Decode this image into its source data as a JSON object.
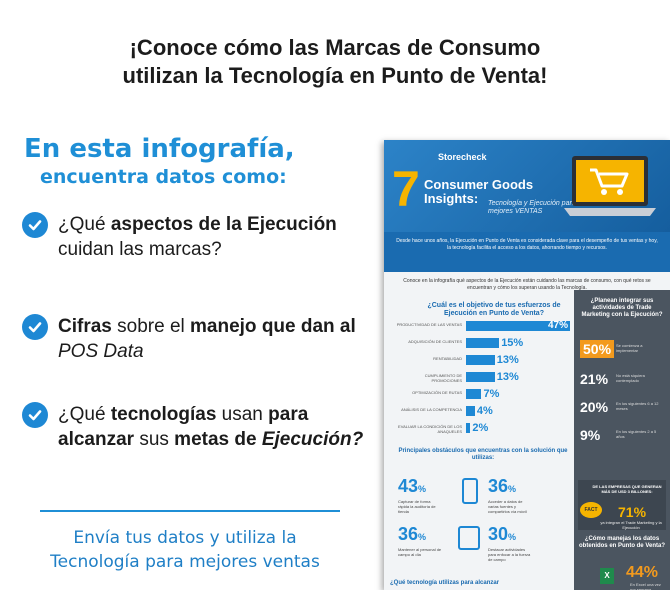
{
  "headline": {
    "line1": "¡Conoce cómo las Marcas de Consumo",
    "line2": "utilizan la Tecnología en Punto de Venta!"
  },
  "intro": {
    "title": "En esta infografía,",
    "subtitle": "encuentra datos como:"
  },
  "bullets": [
    {
      "pre": "¿Qué ",
      "bold": "aspectos de la Ejecución",
      "post": " cuidan las marcas?"
    },
    {
      "bold1": "Cifras",
      "mid1": " sobre el ",
      "bold2": "manejo que dan al ",
      "bolditalic": "POS Data"
    },
    {
      "pre": "¿Qué ",
      "bold1": "tecnologías",
      "mid1": " usan ",
      "bold2": "para alcanzar",
      "mid2": " sus ",
      "bold3": "metas de ",
      "bolditalic": "Ejecución?"
    }
  ],
  "cta": {
    "line1": "Envía tus datos y utiliza la",
    "line2": "Tecnología para mejores ventas"
  },
  "infographic": {
    "brand": "Storecheck",
    "number": "7",
    "title_line1": "Consumer Goods",
    "title_line2": "Insights:",
    "subtitle": "Tecnología y Ejecución para mejores VENTAS",
    "intro": "Desde hace unos años, la Ejecución en Punto de Venta es considerada clave para el desempeño de tus ventas y hoy, la tecnología facilita el acceso a los datos, ahorrando tiempo y recursos.",
    "lead": "Conoce en la infografía qué aspectos de la Ejecución están cuidando las marcas de consumo, con qué retos se encuentran y cómo los superan usando la Tecnología.",
    "q1": "¿Cuál es el objetivo de tus esfuerzos de Ejecución en Punto de Venta?",
    "bars": [
      {
        "label": "PRODUCTIVIDAD DE LAS VENTAS",
        "value": 47,
        "text": "47%"
      },
      {
        "label": "ADQUISICIÓN DE CLIENTES",
        "value": 15,
        "text": "15%"
      },
      {
        "label": "RENTABILIDAD",
        "value": 13,
        "text": "13%"
      },
      {
        "label": "CUMPLIMIENTO DE PROMOCIONES",
        "value": 13,
        "text": "13%"
      },
      {
        "label": "OPTIMIZACIÓN DE RUTAS",
        "value": 7,
        "text": "7%"
      },
      {
        "label": "ANÁLISIS DE LA COMPETENCIA",
        "value": 4,
        "text": "4%"
      },
      {
        "label": "EVALUAR LA CONDICIÓN DE LOS ANAQUELES",
        "value": 2,
        "text": "2%"
      }
    ],
    "side_title": "¿Planean integrar sus actividades de Trade Marketing con la Ejecución?",
    "side_rows": [
      {
        "pct": "50%",
        "text": "Se comienza a implementar"
      },
      {
        "pct": "21%",
        "text": "No está siquiera contemplado"
      },
      {
        "pct": "20%",
        "text": "En los siguientes 6 a 12 meses"
      },
      {
        "pct": "9%",
        "text": "En los siguientes 2 a 5 años"
      }
    ],
    "fact_title": "DE LAS EMPRESAS QUE GENERAN MÁS DE USD 3 BILLONES:",
    "fact_tag": "FACT",
    "fact_pct": "71%",
    "fact_sub": "ya integran el Trade Marketing y la Ejecución",
    "side_q2": "¿Cómo manejas los datos obtenidos en Punto de Venta?",
    "side_44": "44%",
    "side_44_text": "En Excel una vez por semana",
    "obst_title": "Principales obstáculos que encuentras con la solución que utilizas:",
    "stats": [
      {
        "pct": "43",
        "text": "Capturar de forma rápida la auditoría de tienda"
      },
      {
        "pct": "36",
        "text": "Acceder a datos de varias fuentes y compartirlos vía móvil"
      },
      {
        "pct": "36",
        "text": "Mantener al personal de campo al día"
      },
      {
        "pct": "30",
        "text": "Destacar actividades para enfocar a la fuerza de campo"
      }
    ],
    "bottom_q": "¿Qué tecnología utilizas para alcanzar"
  }
}
